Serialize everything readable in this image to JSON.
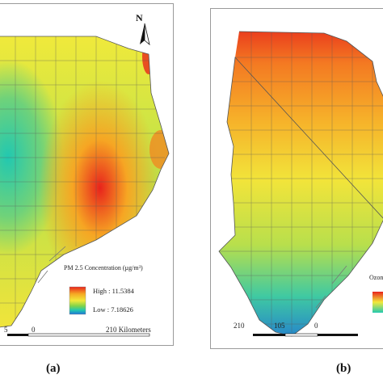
{
  "panel_a": {
    "north_label": "N",
    "legend_title": "PM 2.5 Concentration (µg/m³)",
    "legend_high": "High : 11.5384",
    "legend_low": "Low : 7.18626",
    "scale_left": "5",
    "scale_zero": "0",
    "scale_right": "210 Kilometers",
    "caption": "(a)",
    "gradient_colors": [
      "#e8231c",
      "#f6a623",
      "#f2e93a",
      "#7fd34a",
      "#22c8b0",
      "#1f73d6"
    ]
  },
  "panel_b": {
    "legend_title": "Ozon",
    "scale_labels": [
      "210",
      "105",
      "0"
    ],
    "caption": "(b)"
  }
}
